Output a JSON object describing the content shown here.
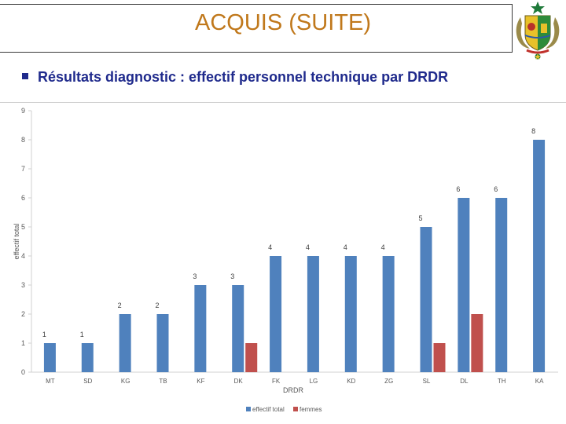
{
  "header": {
    "title": "ACQUIS (SUITE)"
  },
  "emblem": {
    "icon": "senegal-coat-of-arms-icon"
  },
  "subtitle": "Résultats diagnostic : effectif personnel technique par DRDR",
  "chart_data": {
    "type": "bar",
    "categories": [
      "MT",
      "SD",
      "KG",
      "TB",
      "KF",
      "DK",
      "FK",
      "LG",
      "KD",
      "ZG",
      "SL",
      "DL",
      "TH",
      "KA"
    ],
    "series": [
      {
        "name": "effectif total",
        "color": "#4f81bd",
        "values": [
          1,
          1,
          2,
          2,
          3,
          3,
          4,
          4,
          4,
          4,
          5,
          6,
          6,
          8
        ]
      },
      {
        "name": "femmes",
        "color": "#c0504d",
        "values": [
          0,
          0,
          0,
          0,
          0,
          1,
          0,
          0,
          0,
          0,
          1,
          2,
          0,
          0
        ]
      }
    ],
    "data_labels": [
      1,
      1,
      2,
      2,
      3,
      3,
      4,
      4,
      4,
      4,
      5,
      6,
      6,
      8
    ],
    "xlabel": "DRDR",
    "ylabel": "effectif total",
    "ylim": [
      0,
      9
    ],
    "yticks": [
      0,
      1,
      2,
      3,
      4,
      5,
      6,
      7,
      8,
      9
    ],
    "grid": false,
    "legend": "bottom"
  }
}
